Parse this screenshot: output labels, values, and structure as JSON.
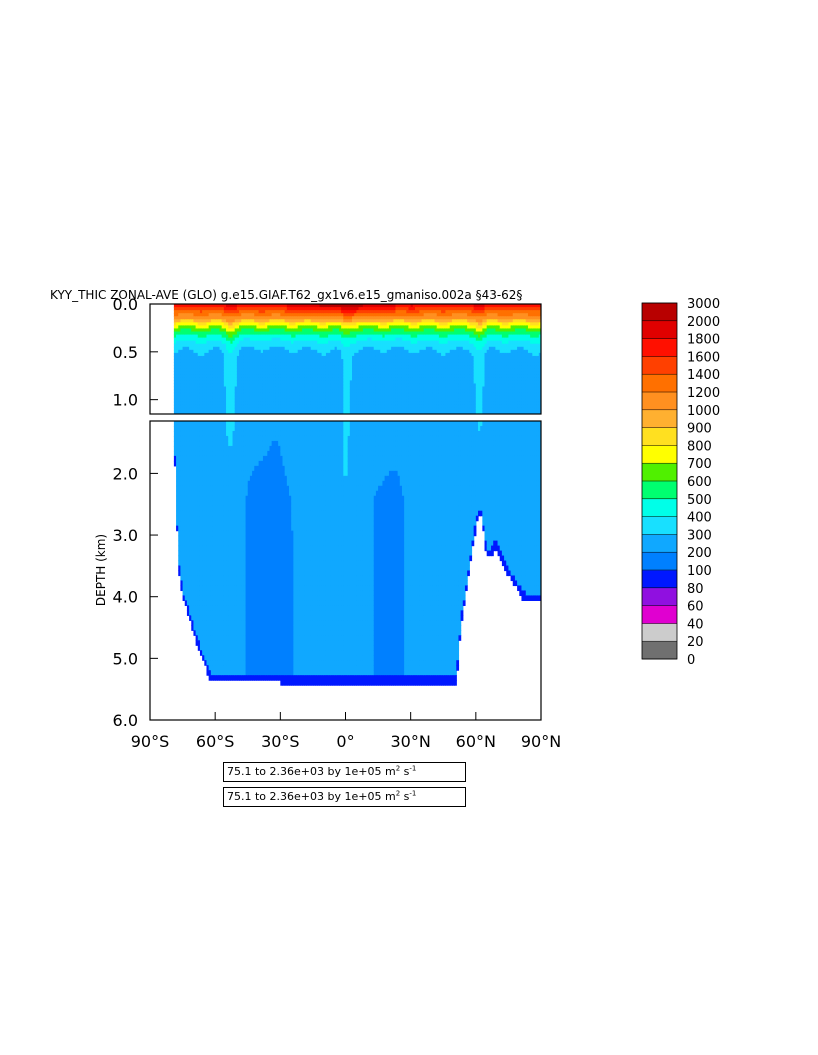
{
  "chart_data": {
    "type": "heatmap",
    "title": "KYY_THIC ZONAL-AVE (GLO) g.e15.GIAF.T62_gx1v6.e15_gmaniso.002a §43-62§",
    "ylabel": "DEPTH (km)",
    "xlabel": "",
    "xlim": [
      -90,
      90
    ],
    "ylim": [
      0,
      6
    ],
    "panel_split_depth_km": 1.15,
    "x_ticks": [
      {
        "value": -90,
        "label": "90°S"
      },
      {
        "value": -60,
        "label": "60°S"
      },
      {
        "value": -30,
        "label": "30°S"
      },
      {
        "value": 0,
        "label": "0°"
      },
      {
        "value": 30,
        "label": "30°N"
      },
      {
        "value": 60,
        "label": "60°N"
      },
      {
        "value": 90,
        "label": "90°N"
      }
    ],
    "y_ticks_top": [
      {
        "value": 0.0,
        "label": "0.0"
      },
      {
        "value": 0.5,
        "label": "0.5"
      },
      {
        "value": 1.0,
        "label": "1.0"
      }
    ],
    "y_ticks_bottom": [
      {
        "value": 2.0,
        "label": "2.0"
      },
      {
        "value": 3.0,
        "label": "3.0"
      },
      {
        "value": 4.0,
        "label": "4.0"
      },
      {
        "value": 5.0,
        "label": "5.0"
      },
      {
        "value": 6.0,
        "label": "6.0"
      }
    ],
    "colorbar": {
      "levels": [
        0,
        20,
        40,
        60,
        80,
        100,
        200,
        300,
        400,
        500,
        600,
        700,
        800,
        900,
        1000,
        1200,
        1400,
        1600,
        1800,
        2000,
        3000
      ],
      "labels": [
        "0",
        "20",
        "40",
        "60",
        "80",
        "100",
        "200",
        "300",
        "400",
        "500",
        "600",
        "700",
        "800",
        "900",
        "1000",
        "1200",
        "1400",
        "1600",
        "1800",
        "2000",
        "3000"
      ],
      "colors": [
        "#707070",
        "#cccccc",
        "#e000d0",
        "#9010e0",
        "#0018ff",
        "#0080ff",
        "#10a8ff",
        "#18e0ff",
        "#00ffe8",
        "#00ff70",
        "#50f000",
        "#ffff00",
        "#ffe020",
        "#ffb030",
        "#ff9020",
        "#ff7000",
        "#ff4000",
        "#ff1000",
        "#e00000",
        "#b80000"
      ]
    },
    "ocean_floor": [
      {
        "lat": -79,
        "depth": 1.3
      },
      {
        "lat": -77,
        "depth": 3.5
      },
      {
        "lat": -75,
        "depth": 4.0
      },
      {
        "lat": -70,
        "depth": 4.6
      },
      {
        "lat": -66,
        "depth": 5.0
      },
      {
        "lat": -62,
        "depth": 5.38
      },
      {
        "lat": -52,
        "depth": 5.38
      },
      {
        "lat": -20,
        "depth": 5.4
      },
      {
        "lat": 0,
        "depth": 5.4
      },
      {
        "lat": 30,
        "depth": 5.4
      },
      {
        "lat": 51,
        "depth": 5.4
      },
      {
        "lat": 53,
        "depth": 4.5
      },
      {
        "lat": 58,
        "depth": 3.3
      },
      {
        "lat": 61,
        "depth": 2.7
      },
      {
        "lat": 63,
        "depth": 2.7
      },
      {
        "lat": 64,
        "depth": 3.2
      },
      {
        "lat": 66,
        "depth": 3.4
      },
      {
        "lat": 69,
        "depth": 3.2
      },
      {
        "lat": 74,
        "depth": 3.6
      },
      {
        "lat": 82,
        "depth": 4.05
      },
      {
        "lat": 90,
        "depth": 4.1
      }
    ],
    "range_text": "75.1 to 2.36e+03 by 1e+05 m",
    "range_unit_sup1": "2",
    "range_unit_mid": " s",
    "range_unit_sup2": "-1"
  }
}
